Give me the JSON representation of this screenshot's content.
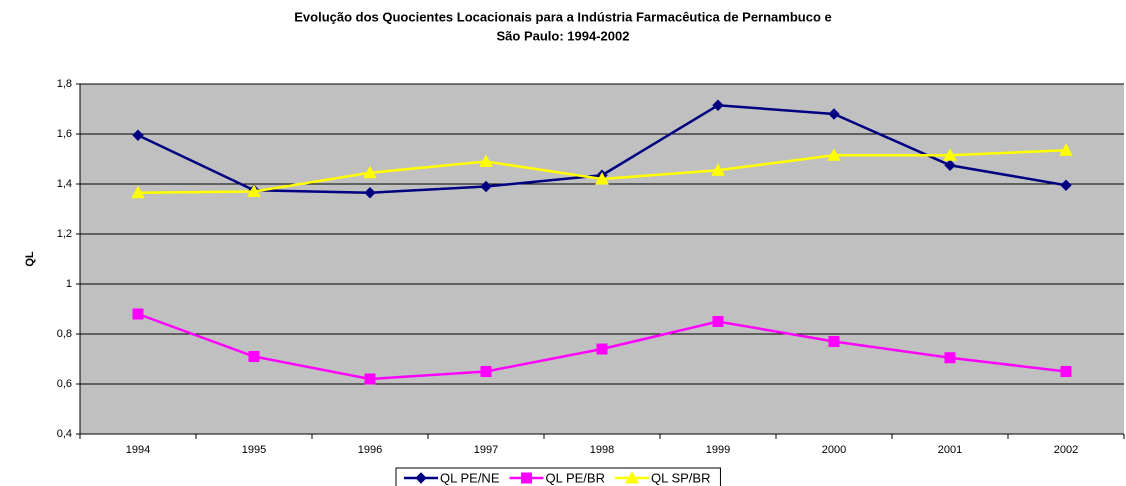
{
  "chart_data": {
    "type": "line",
    "title": [
      "Evolução dos Quocientes Locacionais para a Indústria Farmacêutica de Pernambuco e",
      "São Paulo: 1994-2002"
    ],
    "ylabel": "QL",
    "categories": [
      "1994",
      "1995",
      "1996",
      "1997",
      "1998",
      "1999",
      "2000",
      "2001",
      "2002"
    ],
    "series": [
      {
        "name": "QL PE/NE",
        "color": "#000080",
        "marker": "diamond",
        "values": [
          1.595,
          1.375,
          1.365,
          1.39,
          1.435,
          1.715,
          1.68,
          1.475,
          1.395
        ]
      },
      {
        "name": "QL PE/BR",
        "color": "#ff00ff",
        "marker": "square",
        "values": [
          0.88,
          0.71,
          0.62,
          0.65,
          0.74,
          0.85,
          0.77,
          0.705,
          0.65
        ]
      },
      {
        "name": "QL SP/BR",
        "color": "#ffff00",
        "marker": "triangle",
        "values": [
          1.365,
          1.37,
          1.445,
          1.49,
          1.42,
          1.455,
          1.515,
          1.515,
          1.535
        ]
      }
    ],
    "ylim": [
      0.4,
      1.8
    ],
    "yticks": [
      {
        "value": 0.4,
        "label": "0,4"
      },
      {
        "value": 0.6,
        "label": "0,6"
      },
      {
        "value": 0.8,
        "label": "0,8"
      },
      1,
      {
        "value": 1.2,
        "label": "1,2"
      },
      {
        "value": 1.4,
        "label": "1,4"
      },
      {
        "value": 1.6,
        "label": "1,6"
      },
      {
        "value": 1.8,
        "label": "1,8"
      }
    ],
    "grid": true,
    "legend": "bottom",
    "plot_background": "#c0c0c0"
  }
}
